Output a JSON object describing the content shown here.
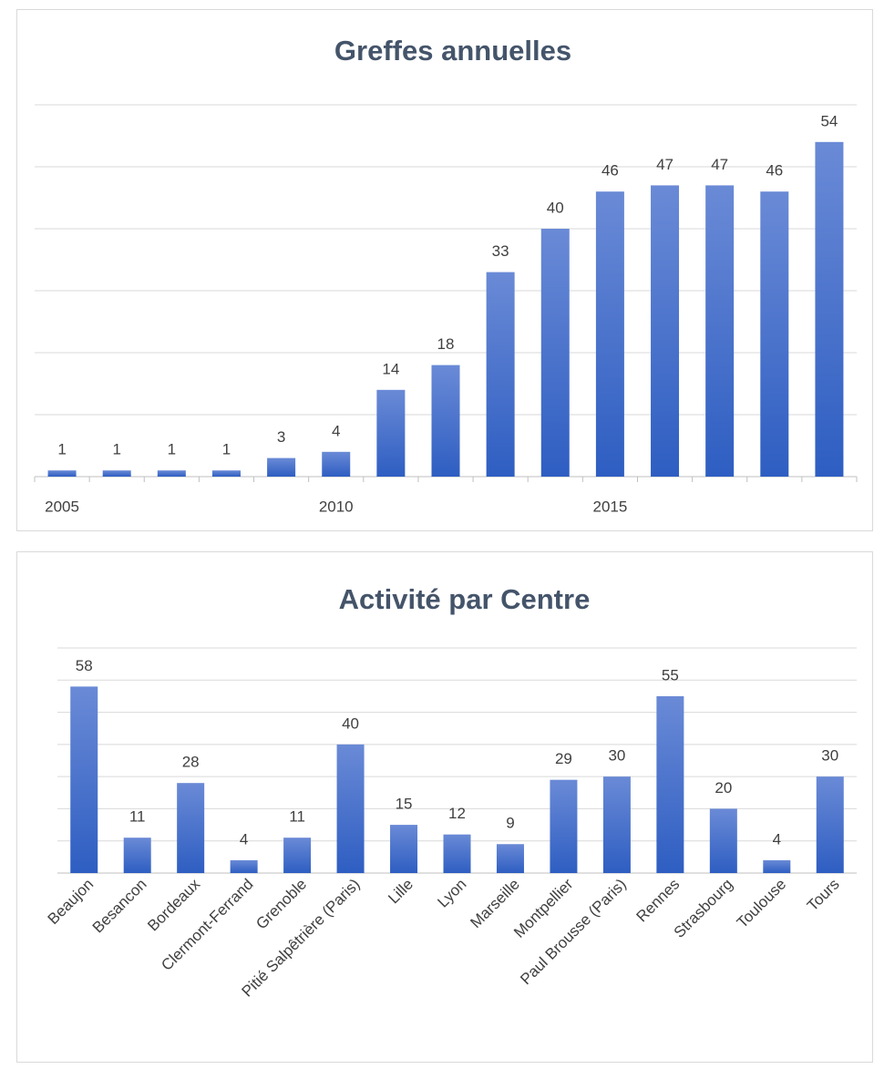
{
  "chart_data": [
    {
      "type": "bar",
      "title": "Greffes annuelles",
      "categories": [
        "2005",
        null,
        null,
        null,
        null,
        "2010",
        null,
        null,
        null,
        null,
        "2015",
        null,
        null,
        null,
        null
      ],
      "values": [
        1,
        1,
        1,
        1,
        3,
        4,
        14,
        18,
        33,
        40,
        46,
        47,
        47,
        46,
        54
      ],
      "ylim": [
        0,
        60
      ],
      "yticks": [
        0,
        10,
        20,
        30,
        40,
        50,
        60
      ],
      "grid": true,
      "color": "#3a66c8",
      "rotate_labels": false
    },
    {
      "type": "bar",
      "title": "Activité par Centre",
      "categories": [
        "Beaujon",
        "Besancon",
        "Bordeaux",
        "Clermont-Ferrand",
        "Grenoble",
        "Pitié Salpêtrière (Paris)",
        "Lille",
        "Lyon",
        "Marseille",
        "Montpellier",
        "Paul Brousse (Paris)",
        "Rennes",
        "Strasbourg",
        "Toulouse",
        "Tours"
      ],
      "values": [
        58,
        11,
        28,
        4,
        11,
        40,
        15,
        12,
        9,
        29,
        30,
        55,
        20,
        4,
        30
      ],
      "ylim": [
        0,
        70
      ],
      "yticks": [
        0,
        10,
        20,
        30,
        40,
        50,
        60,
        70
      ],
      "grid": true,
      "color": "#3a66c8",
      "rotate_labels": true
    }
  ]
}
